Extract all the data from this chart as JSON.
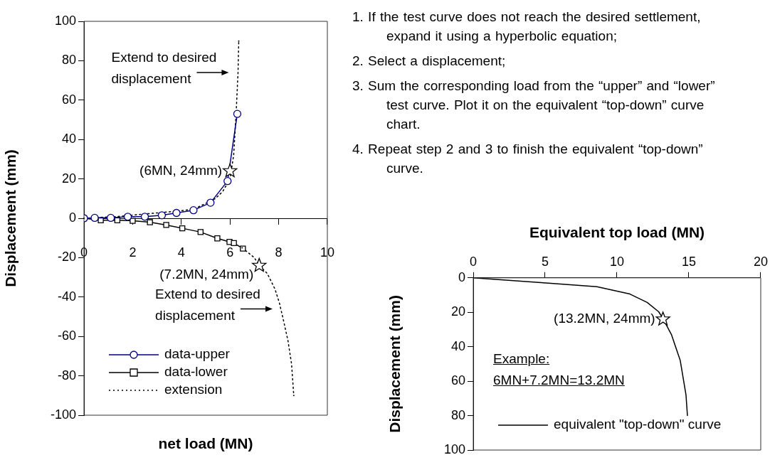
{
  "chart_data": [
    {
      "type": "line",
      "xlabel": "net load (MN)",
      "ylabel": "Displacement (mm)",
      "xlim": [
        0,
        10
      ],
      "xticks": [
        0,
        2,
        4,
        6,
        8,
        10
      ],
      "ylim": [
        -100,
        100
      ],
      "yticks": [
        -100,
        -80,
        -60,
        -40,
        -20,
        0,
        20,
        40,
        60,
        80,
        100
      ],
      "legend": "bottom left",
      "series": [
        {
          "name": "data-upper",
          "color": "#000080",
          "marker": "circle",
          "x": [
            0,
            0.44,
            1.1,
            1.8,
            2.5,
            3.2,
            3.8,
            4.5,
            5.2,
            5.9,
            6.3
          ],
          "values": [
            0,
            0.2,
            0.2,
            0.8,
            0.8,
            1.5,
            2.7,
            4.1,
            7.9,
            18.9,
            53
          ]
        },
        {
          "name": "data-lower",
          "color": "#000000",
          "marker": "square",
          "x": [
            0,
            0.69,
            1.37,
            2.0,
            2.71,
            3.38,
            4.04,
            4.79,
            5.48,
            5.98,
            6.16,
            6.53
          ],
          "values": [
            0,
            -1,
            -1,
            -1.3,
            -2,
            -3.4,
            -5.1,
            -7,
            -10.2,
            -12,
            -12.6,
            -15.4
          ]
        },
        {
          "name": "extension",
          "color": "#000000",
          "marker": "none",
          "line_style": "dotted",
          "x": [
            0,
            1.5,
            2.6,
            3.2,
            4.5,
            5.4,
            5.7,
            6.0,
            6.15,
            6.25,
            6.33,
            6.36
          ],
          "values": [
            0,
            1,
            2.3,
            2.9,
            4.5,
            10,
            13.6,
            20,
            32,
            53,
            74,
            90
          ]
        },
        {
          "color": "#000000",
          "marker": "none",
          "line_style": "dotted",
          "x": [
            6.5,
            7.0,
            7.2,
            7.53,
            7.85,
            8.03,
            8.2,
            8.38,
            8.53,
            8.62
          ],
          "values": [
            -15,
            -20,
            -24,
            -28,
            -36,
            -43,
            -52,
            -62,
            -74,
            -90
          ]
        },
        {
          "type": "scatter",
          "color": "#000000",
          "marker": "star",
          "x": [
            6,
            7.2
          ],
          "values": [
            24,
            -24
          ]
        }
      ],
      "annotations": [
        {
          "text": "(6MN, 24mm)",
          "x": 6,
          "y": 24
        },
        {
          "text": "(7.2MN, 24mm)",
          "x": 7.2,
          "y": -24
        },
        {
          "text": "Extend to desired displacement",
          "x": 6.3,
          "y": 74
        },
        {
          "text": "Extend to desired displacement",
          "x": 8.1,
          "y": -46
        }
      ]
    },
    {
      "type": "other",
      "annotations": [
        "1. If the test curve does not reach the desired settlement, expand it using a hyperbolic equation;",
        "2. Select a displacement;",
        "3. Sum the corresponding load from the “upper” and “lower” test curve. Plot it on the equivalent “top-down” curve chart.",
        "4. Repeat step 2 and 3 to finish the equivalent “top-down” curve."
      ]
    },
    {
      "type": "line",
      "xlabel": "Equivalent top load (MN)",
      "ylabel": "Displacement (mm)",
      "xlim": [
        0,
        20
      ],
      "xticks": [
        0,
        5,
        10,
        15,
        20
      ],
      "ylim": [
        100,
        0
      ],
      "yticks": [
        0,
        20,
        40,
        60,
        80,
        100
      ],
      "legend": "bottom left",
      "series": [
        {
          "name": "equivalent \"top-down\" curve",
          "color": "#000000",
          "marker": "none",
          "x": [
            0,
            5.06,
            8.6,
            10.9,
            12.1,
            12.9,
            13.2,
            13.8,
            14.4,
            14.8,
            14.9
          ],
          "values": [
            0,
            3,
            5.1,
            9.4,
            14.3,
            19.7,
            23.7,
            33.2,
            48,
            68,
            80
          ]
        },
        {
          "type": "scatter",
          "color": "#000000",
          "marker": "star",
          "x": [
            13.2
          ],
          "values": [
            24
          ]
        }
      ],
      "annotations": [
        {
          "text": "(13.2MN, 24mm)",
          "x": 13.2,
          "y": 24
        },
        "Example:",
        "6MN+7.2MN=13.2MN"
      ]
    }
  ]
}
